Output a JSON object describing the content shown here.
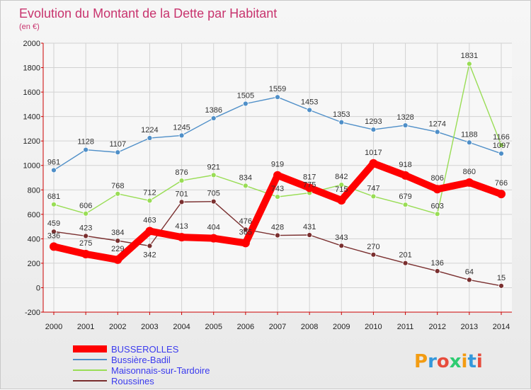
{
  "chart_data": {
    "type": "line",
    "title": "Evolution du Montant de la Dette par Habitant",
    "subtitle": "(en €)",
    "x": [
      "2000",
      "2001",
      "2002",
      "2003",
      "2004",
      "2005",
      "2006",
      "2007",
      "2008",
      "2009",
      "2010",
      "2011",
      "2012",
      "2013",
      "2014"
    ],
    "y_ticks": [
      "2000",
      "1800",
      "1600",
      "1400",
      "1200",
      "1000",
      "800",
      "600",
      "400",
      "200",
      "0",
      "-200"
    ],
    "ylim": [
      -200,
      2000
    ],
    "grid": true,
    "legend_position": "bottom-left",
    "series": [
      {
        "name": "BUSSEROLLES",
        "color": "#ff0000",
        "values": [
          336,
          275,
          229,
          463,
          413,
          404,
          365,
          919,
          817,
          715,
          1017,
          918,
          806,
          860,
          766
        ],
        "labels": [
          "336",
          "275",
          "229",
          "463",
          "413",
          "404",
          "365",
          "919",
          "817",
          "715",
          "1017",
          "918",
          "806",
          "860",
          "766"
        ]
      },
      {
        "name": "Bussière-Badil",
        "color": "#4f8fc8",
        "values": [
          961,
          1128,
          1107,
          1224,
          1245,
          1386,
          1505,
          1559,
          1453,
          1353,
          1293,
          1328,
          1274,
          1188,
          1097
        ],
        "labels": [
          "961",
          "1128",
          "1107",
          "1224",
          "1245",
          "1386",
          "1505",
          "1559",
          "1453",
          "1353",
          "1293",
          "1328",
          "1274",
          "1188",
          "1097"
        ]
      },
      {
        "name": "Maisonnais-sur-Tardoire",
        "color": "#99dd55",
        "values": [
          681,
          606,
          768,
          712,
          876,
          921,
          834,
          743,
          775,
          842,
          747,
          679,
          603,
          1831,
          1166
        ],
        "labels": [
          "681",
          "606",
          "768",
          "712",
          "876",
          "921",
          "834",
          "743",
          "775",
          "842",
          "747",
          "679",
          "603",
          "1831",
          "1166"
        ]
      },
      {
        "name": "Roussines",
        "color": "#7a2f2f",
        "values": [
          459,
          423,
          384,
          342,
          701,
          705,
          476,
          428,
          431,
          343,
          270,
          201,
          136,
          64,
          15
        ],
        "labels": [
          "459",
          "423",
          "384",
          "342",
          "701",
          "705",
          "476",
          "428",
          "431",
          "343",
          "270",
          "201",
          "136",
          "64",
          "15"
        ]
      }
    ]
  },
  "watermark": {
    "text": "Proxiti",
    "colors": [
      "#f39c12",
      "#3498db",
      "#e74c3c",
      "#2ecc71"
    ]
  }
}
